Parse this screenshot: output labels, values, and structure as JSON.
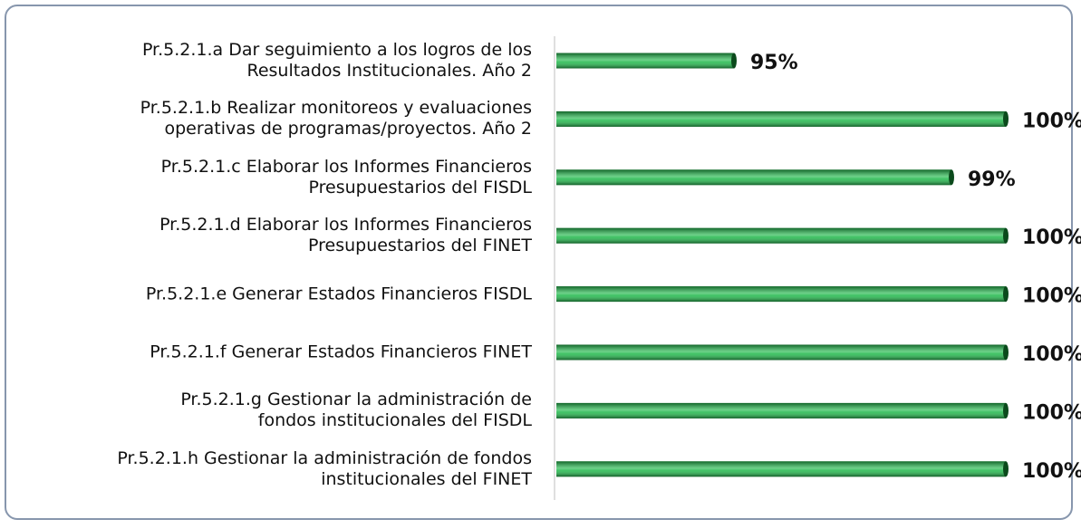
{
  "chart_data": {
    "type": "bar",
    "orientation": "horizontal",
    "categories": [
      "Pr.5.2.1.a Dar seguimiento a los logros de los\nResultados Institucionales. Año 2",
      "Pr.5.2.1.b Realizar monitoreos y evaluaciones\noperativas de programas/proyectos. Año 2",
      "Pr.5.2.1.c Elaborar los Informes Financieros\nPresupuestarios del FISDL",
      "Pr.5.2.1.d Elaborar los Informes Financieros\nPresupuestarios del FINET",
      "Pr.5.2.1.e Generar Estados Financieros FISDL",
      "Pr.5.2.1.f Generar Estados Financieros FINET",
      "Pr.5.2.1.g Gestionar la administración de\nfondos institucionales del FISDL",
      "Pr.5.2.1.h Gestionar la administración de fondos\ninstitucionales del FINET"
    ],
    "values": [
      95,
      100,
      99,
      100,
      100,
      100,
      100,
      100
    ],
    "value_labels": [
      "95%",
      "100%",
      "99%",
      "100%",
      "100%",
      "100%",
      "100%",
      "100%"
    ],
    "color": "#1fb84a",
    "xlim": [
      91.7,
      100
    ]
  }
}
